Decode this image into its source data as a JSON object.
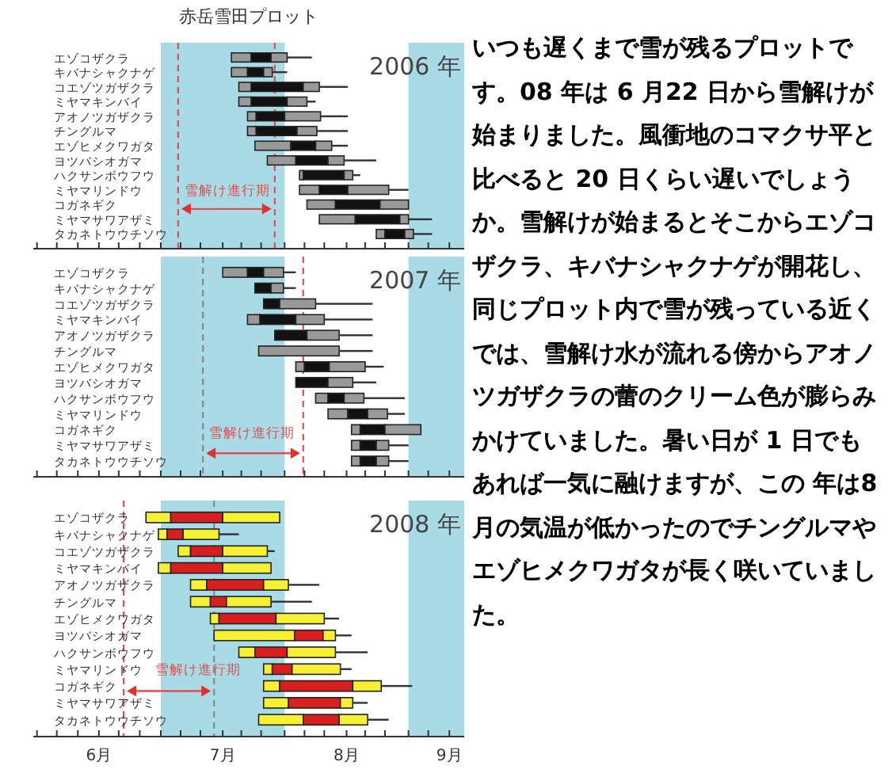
{
  "chart_data": [
    {
      "type": "bar",
      "title": "赤岳雪田プロット",
      "orientation": "horizontal",
      "tick_labels": "y",
      "categories": [
        "エゾコザクラ",
        "キバナシャクナゲ",
        "コエゾツガザクラ",
        "ミヤマキンバイ",
        "アオノツガザクラ",
        "チングルマ",
        "エゾヒメクワガタ",
        "ヨツバシオガマ",
        "ハクサンボウフウ",
        "ミヤマリンドウ",
        "コガネギク",
        "ミヤマサワアザミ",
        "タカネトウウチソウ"
      ],
      "series": [
        {
          "color": "#999999",
          "base": [
            7.57,
            7.57,
            7.63,
            7.63,
            7.7,
            7.7,
            7.76,
            7.86,
            8.12,
            8.12,
            8.18,
            8.28,
            8.74
          ],
          "values": [
            0.16,
            0.13,
            0.1,
            0.1,
            0.07,
            0.07,
            0.29,
            0.23,
            0.03,
            0.16,
            0.23,
            0.29,
            0.07
          ]
        },
        {
          "color": "#111111",
          "base": [
            7.73,
            7.7,
            7.73,
            7.73,
            7.77,
            7.77,
            8.05,
            8.09,
            8.15,
            8.28,
            8.41,
            8.57,
            8.81
          ],
          "values": [
            0.16,
            0.13,
            0.42,
            0.29,
            0.23,
            0.33,
            0.2,
            0.26,
            0.33,
            0.23,
            0.36,
            0.36,
            0.16
          ]
        },
        {
          "color": "#999999",
          "base": [
            7.89,
            7.83,
            8.15,
            8.02,
            8,
            8.1,
            8.25,
            8.35,
            8.48,
            8.51,
            8.77,
            8.93,
            8.97
          ],
          "values": [
            0.13,
            0.07,
            0.13,
            0.16,
            0.29,
            0.16,
            0.13,
            0.13,
            0.07,
            0.33,
            0.23,
            0.07,
            0.07
          ]
        },
        {
          "color": "#333333",
          "base": [
            8.02,
            7.9,
            8.28,
            8.18,
            8.29,
            8.26,
            8.38,
            8.48,
            8.55,
            8.84,
            null,
            9,
            9.04
          ],
          "values": [
            0.2,
            0.12,
            0.23,
            0.07,
            0.22,
            0.25,
            0.13,
            0.26,
            0.06,
            0.16,
            null,
            0.19,
            0.15
          ]
        }
      ],
      "xlim": [
        5.97,
        9.45
      ],
      "xticks": [
        {
          "value": 6,
          "label": null
        },
        {
          "value": 6.16,
          "label": null
        },
        {
          "value": 6.33,
          "label": null
        },
        {
          "value": 6.5,
          "label": null
        },
        {
          "value": 6.66,
          "label": null
        },
        {
          "value": 6.83,
          "label": null
        },
        {
          "value": 7,
          "label": null
        },
        {
          "value": 7.16,
          "label": null
        },
        {
          "value": 7.32,
          "label": null
        },
        {
          "value": 7.5,
          "label": null
        },
        {
          "value": 7.65,
          "label": null
        },
        {
          "value": 7.81,
          "label": null
        },
        {
          "value": 8,
          "label": null
        },
        {
          "value": 8.16,
          "label": null
        },
        {
          "value": 8.32,
          "label": null
        },
        {
          "value": 8.5,
          "label": null
        },
        {
          "value": 8.65,
          "label": null
        },
        {
          "value": 8.81,
          "label": null
        },
        {
          "value": 9,
          "label": null
        },
        {
          "value": 9.16,
          "label": null
        },
        {
          "value": 9.33,
          "label": null
        }
      ],
      "bands": [
        {
          "axis": "x",
          "from": 7,
          "to": 8,
          "color": "#a8dbe6"
        },
        {
          "axis": "x",
          "from": 9,
          "to": 9.45,
          "color": "#a8dbe6"
        }
      ],
      "ref_lines": [
        {
          "axis": "x",
          "value": 7.14,
          "color": "#e05050",
          "line_style": "dashed"
        },
        {
          "axis": "x",
          "value": 7.92,
          "color": "#e05050",
          "line_style": "dashed"
        }
      ],
      "annotations": [
        "2006 年",
        "雪解け進行期"
      ]
    },
    {
      "type": "bar",
      "orientation": "horizontal",
      "tick_labels": "y",
      "categories": [
        "エゾコザクラ",
        "キバナシャクナゲ",
        "コエゾツガザクラ",
        "ミヤマキンバイ",
        "アオノツガザクラ",
        "チングルマ",
        "エゾヒメクワガタ",
        "ヨツバシオガマ",
        "ハクサンボウフウ",
        "ミヤマリンドウ",
        "コガネギク",
        "ミヤマサワアザミ",
        "タカネトウウチソウ"
      ],
      "series": [
        {
          "color": "#999999",
          "base": [
            7.5,
            null,
            null,
            7.7,
            null,
            null,
            8.09,
            null,
            8.25,
            8.35,
            8.54,
            8.54,
            8.54
          ],
          "values": [
            0.2,
            null,
            null,
            0.1,
            null,
            null,
            0.07,
            null,
            0.1,
            0.16,
            0.07,
            0.07,
            0.07
          ]
        },
        {
          "color": "#111111",
          "base": [
            7.7,
            7.76,
            7.83,
            7.8,
            7.92,
            null,
            8.16,
            8.09,
            8.35,
            8.51,
            8.61,
            8.61,
            8.61
          ],
          "values": [
            0.13,
            0.13,
            0.13,
            0.29,
            0.26,
            null,
            0.2,
            0.26,
            0.13,
            0.16,
            0.2,
            0.13,
            0.13
          ]
        },
        {
          "color": "#999999",
          "base": [
            7.83,
            7.89,
            7.96,
            8.09,
            8.18,
            7.79,
            8.36,
            8.35,
            8.48,
            8.67,
            8.81,
            8.74,
            8.74
          ],
          "values": [
            0.16,
            0.1,
            0.29,
            0.23,
            0.26,
            0.65,
            0.29,
            0.2,
            0.16,
            0.16,
            0.29,
            0.1,
            0.1
          ]
        },
        {
          "color": "#333333",
          "base": [
            7.99,
            7.99,
            8.25,
            8.32,
            8.44,
            8.44,
            8.65,
            8.55,
            8.64,
            8.83,
            null,
            8.84,
            8.84
          ],
          "values": [
            0.1,
            0.1,
            0.46,
            0.39,
            0.27,
            0.27,
            0.15,
            0.19,
            0.33,
            0.14,
            null,
            0.16,
            0.16
          ]
        }
      ],
      "xlim": [
        5.97,
        9.45
      ],
      "xticks": [
        {
          "value": 6,
          "label": null
        },
        {
          "value": 6.16,
          "label": null
        },
        {
          "value": 6.33,
          "label": null
        },
        {
          "value": 6.5,
          "label": null
        },
        {
          "value": 6.66,
          "label": null
        },
        {
          "value": 6.83,
          "label": null
        },
        {
          "value": 7,
          "label": null
        },
        {
          "value": 7.16,
          "label": null
        },
        {
          "value": 7.32,
          "label": null
        },
        {
          "value": 7.5,
          "label": null
        },
        {
          "value": 7.65,
          "label": null
        },
        {
          "value": 7.81,
          "label": null
        },
        {
          "value": 8,
          "label": null
        },
        {
          "value": 8.16,
          "label": null
        },
        {
          "value": 8.32,
          "label": null
        },
        {
          "value": 8.5,
          "label": null
        },
        {
          "value": 8.65,
          "label": null
        },
        {
          "value": 8.81,
          "label": null
        },
        {
          "value": 9,
          "label": null
        },
        {
          "value": 9.16,
          "label": null
        },
        {
          "value": 9.33,
          "label": null
        }
      ],
      "bands": [
        {
          "axis": "x",
          "from": 7,
          "to": 8,
          "color": "#a8dbe6"
        },
        {
          "axis": "x",
          "from": 9,
          "to": 9.45,
          "color": "#a8dbe6"
        }
      ],
      "ref_lines": [
        {
          "axis": "x",
          "value": 7.34,
          "color": "#888888",
          "line_style": "dashed"
        },
        {
          "axis": "x",
          "value": 8.15,
          "color": "#e05050",
          "line_style": "dashed"
        }
      ],
      "annotations": [
        "2007 年",
        "雪解け進行期"
      ]
    },
    {
      "type": "bar",
      "orientation": "horizontal",
      "categories": [
        "エゾコザクラ",
        "キバナシャクナゲ",
        "コエゾツガザクラ",
        "ミヤマキンバイ",
        "アオノツガザクラ",
        "チングルマ",
        "エゾヒメクワガタ",
        "ヨツバシオガマ",
        "ハクサンボウフウ",
        "ミヤマリンドウ",
        "コガネギク",
        "ミヤマサワアザミ",
        "タカネトウウチソウ"
      ],
      "series": [
        {
          "color": "#f5f032",
          "base": [
            6.88,
            6.98,
            7.14,
            6.98,
            7.24,
            7.24,
            7.4,
            7.43,
            7.63,
            7.83,
            7.83,
            7.83,
            7.79
          ],
          "values": [
            0.2,
            0.07,
            0.1,
            0.1,
            0.13,
            0.16,
            0.07,
            0.65,
            0.13,
            0.07,
            0.13,
            0.2,
            0.36
          ]
        },
        {
          "color": "#d81e1e",
          "base": [
            7.08,
            7.05,
            7.24,
            7.08,
            7.37,
            7.4,
            7.47,
            8.08,
            7.76,
            7.9,
            7.96,
            8.03,
            8.15
          ],
          "values": [
            0.42,
            0.13,
            0.26,
            0.42,
            0.46,
            0.13,
            0.46,
            0.23,
            0.26,
            0.16,
            0.59,
            0.42,
            0.29
          ]
        },
        {
          "color": "#f5f032",
          "base": [
            7.5,
            7.18,
            7.5,
            7.5,
            7.83,
            7.53,
            7.93,
            8.31,
            8.02,
            8.06,
            8.55,
            8.45,
            8.44
          ],
          "values": [
            0.46,
            0.29,
            0.36,
            0.39,
            0.2,
            0.36,
            0.39,
            0.1,
            0.39,
            0.39,
            0.23,
            0.1,
            0.23
          ]
        },
        {
          "color": "#333333",
          "base": [
            null,
            7.47,
            7.86,
            null,
            8.03,
            7.89,
            8.32,
            8.41,
            8.41,
            8.45,
            8.78,
            8.55,
            8.67
          ],
          "values": [
            null,
            0.16,
            0.06,
            null,
            0.25,
            0.33,
            0.12,
            0.13,
            0.26,
            0.09,
            0.25,
            0.12,
            0.17
          ]
        }
      ],
      "xlim": [
        5.97,
        9.45
      ],
      "xticks": [
        {
          "value": 6,
          "label": null
        },
        {
          "value": 6.16,
          "label": null
        },
        {
          "value": 6.33,
          "label": null
        },
        {
          "value": 6.5,
          "label": "6月"
        },
        {
          "value": 6.66,
          "label": null
        },
        {
          "value": 6.83,
          "label": null
        },
        {
          "value": 7,
          "label": null
        },
        {
          "value": 7.16,
          "label": null
        },
        {
          "value": 7.32,
          "label": null
        },
        {
          "value": 7.5,
          "label": "7月"
        },
        {
          "value": 7.65,
          "label": null
        },
        {
          "value": 7.81,
          "label": null
        },
        {
          "value": 8,
          "label": null
        },
        {
          "value": 8.16,
          "label": null
        },
        {
          "value": 8.32,
          "label": null
        },
        {
          "value": 8.5,
          "label": "8月"
        },
        {
          "value": 8.65,
          "label": null
        },
        {
          "value": 8.81,
          "label": null
        },
        {
          "value": 9,
          "label": null
        },
        {
          "value": 9.16,
          "label": null
        },
        {
          "value": 9.33,
          "label": "9月"
        }
      ],
      "bands": [
        {
          "axis": "x",
          "from": 7,
          "to": 8,
          "color": "#a8dbe6"
        },
        {
          "axis": "x",
          "from": 9,
          "to": 9.45,
          "color": "#a8dbe6"
        }
      ],
      "ref_lines": [
        {
          "axis": "x",
          "value": 6.7,
          "color": "#e05050",
          "line_style": "dashed"
        },
        {
          "axis": "x",
          "value": 7.43,
          "color": "#888888",
          "line_style": "dashed"
        }
      ],
      "annotations": [
        "2008 年",
        "雪解け進行期"
      ]
    },
    {
      "type": "other",
      "annotations": [
        "いつも遅くまで雪が残るプロットです。08 年は 6 月22 日から雪解けが始まりました。風衝地のコマクサ平と比べると 20 日くらい遅いでしょうか。雪解けが始まるとそこからエゾコザクラ、キバナシャクナゲが開花し、同じプロット内で雪が残っている近くでは、雪解け水が流れる傍からアオノツガザクラの蕾のクリーム色が膨らみかけていました。暑い日が 1 日でもあれば一気に融けますが、この 年は8月の気温が低かったのでチングルマやエゾヒメクワガタが長く咲いていました。"
      ]
    }
  ]
}
